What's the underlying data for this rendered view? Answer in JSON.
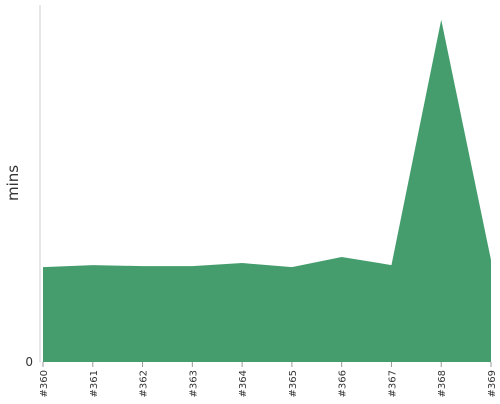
{
  "chart_data": {
    "type": "area",
    "y_label": "mins",
    "categories": [
      "#360",
      "#361",
      "#362",
      "#363",
      "#364",
      "#365",
      "#366",
      "#367",
      "#368",
      "#369"
    ],
    "values": [
      18.6,
      19.0,
      18.8,
      18.8,
      19.4,
      18.6,
      20.6,
      19.0,
      67.1,
      20.0
    ],
    "color": "#459d6e",
    "ylim": [
      0,
      70
    ],
    "yticks": [
      0
    ]
  }
}
